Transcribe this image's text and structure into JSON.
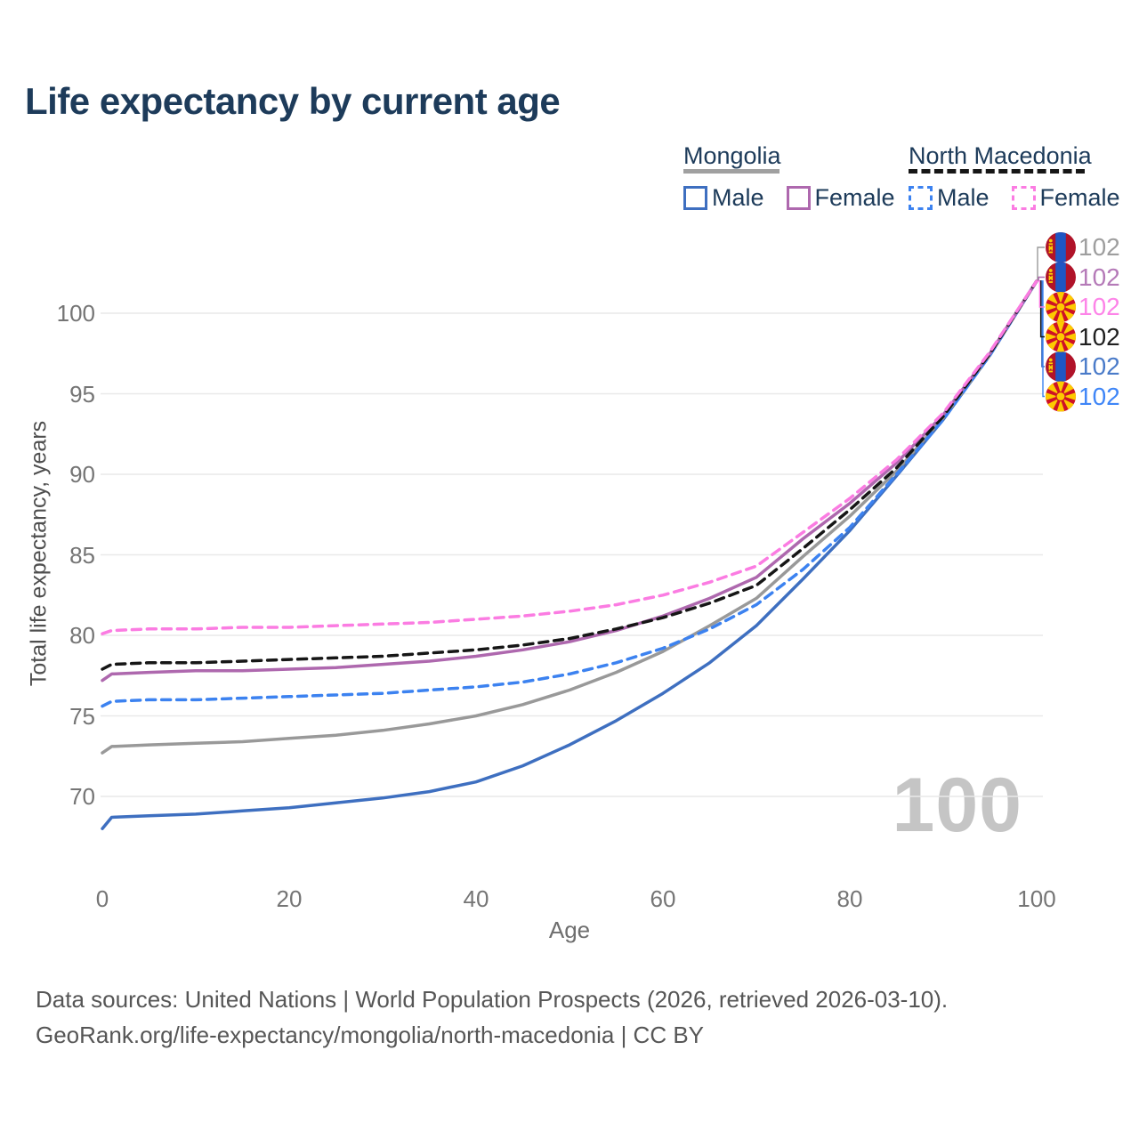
{
  "title": "Life expectancy by current age",
  "watermark": "100",
  "legend": {
    "groups": [
      {
        "country": "Mongolia",
        "line_style": "solid",
        "line_color": "#a0a0a0",
        "items": [
          {
            "label": "Male",
            "color": "#3e6fc0",
            "dashed": false
          },
          {
            "label": "Female",
            "color": "#ae68ae",
            "dashed": false
          }
        ]
      },
      {
        "country": "North Macedonia",
        "line_style": "dashed",
        "line_color": "#161616",
        "items": [
          {
            "label": "Male",
            "color": "#3c82f0",
            "dashed": true
          },
          {
            "label": "Female",
            "color": "#fb7ce2",
            "dashed": true
          }
        ]
      }
    ]
  },
  "chart_data": {
    "type": "line",
    "title": "Life expectancy by current age",
    "xlabel": "Age",
    "ylabel": "Total life expectancy, years",
    "xlim": [
      0,
      100
    ],
    "ylim": [
      67,
      103
    ],
    "x_ticks": [
      0,
      20,
      40,
      60,
      80,
      100
    ],
    "y_ticks": [
      70,
      75,
      80,
      85,
      90,
      95,
      100
    ],
    "grid": "horizontal",
    "legend_position": "top-right",
    "x": [
      0,
      1,
      5,
      10,
      15,
      20,
      25,
      30,
      35,
      40,
      45,
      50,
      55,
      60,
      65,
      70,
      75,
      80,
      85,
      90,
      95,
      100
    ],
    "series": [
      {
        "name": "Mongolia Male",
        "country": "Mongolia",
        "sex": "Male",
        "style": "solid",
        "color": "#3e6fc0",
        "flag": "mn",
        "end_row": 4,
        "end_label": "102",
        "end_label_color": "#4a7bc9",
        "values": [
          68.0,
          68.7,
          68.8,
          68.9,
          69.1,
          69.3,
          69.6,
          69.9,
          70.3,
          70.9,
          71.9,
          73.2,
          74.7,
          76.4,
          78.3,
          80.6,
          83.5,
          86.5,
          89.9,
          93.4,
          97.4,
          102
        ]
      },
      {
        "name": "Mongolia Total",
        "country": "Mongolia",
        "sex": "Total",
        "style": "solid",
        "color": "#999999",
        "flag": "mn",
        "end_row": 0,
        "end_label": "102",
        "end_label_color": "#9e9e9e",
        "values": [
          72.7,
          73.1,
          73.2,
          73.3,
          73.4,
          73.6,
          73.8,
          74.1,
          74.5,
          75.0,
          75.7,
          76.6,
          77.7,
          79.0,
          80.6,
          82.3,
          84.9,
          87.4,
          90.2,
          93.5,
          97.4,
          102
        ]
      },
      {
        "name": "North Macedonia Male",
        "country": "North Macedonia",
        "sex": "Male",
        "style": "dashed",
        "color": "#3c82f0",
        "flag": "mk",
        "end_row": 5,
        "end_label": "102",
        "end_label_color": "#3f86f7",
        "values": [
          75.6,
          75.9,
          76.0,
          76.0,
          76.1,
          76.2,
          76.3,
          76.4,
          76.6,
          76.8,
          77.1,
          77.6,
          78.3,
          79.2,
          80.4,
          81.9,
          84.1,
          86.7,
          90.0,
          93.4,
          97.4,
          102
        ]
      },
      {
        "name": "Mongolia Female",
        "country": "Mongolia",
        "sex": "Female",
        "style": "solid",
        "color": "#ae68ae",
        "flag": "mn",
        "end_row": 1,
        "end_label": "102",
        "end_label_color": "#b57ab8",
        "values": [
          77.2,
          77.6,
          77.7,
          77.8,
          77.8,
          77.9,
          78.0,
          78.2,
          78.4,
          78.7,
          79.1,
          79.6,
          80.3,
          81.2,
          82.3,
          83.6,
          86.0,
          88.2,
          90.7,
          93.7,
          97.5,
          102
        ]
      },
      {
        "name": "North Macedonia Total",
        "country": "North Macedonia",
        "sex": "Total",
        "style": "dashed",
        "color": "#161616",
        "flag": "mk",
        "end_row": 3,
        "end_label": "102",
        "end_label_color": "#1f1f1f",
        "values": [
          77.9,
          78.2,
          78.3,
          78.3,
          78.4,
          78.5,
          78.6,
          78.7,
          78.9,
          79.1,
          79.4,
          79.8,
          80.4,
          81.1,
          82.0,
          83.1,
          85.4,
          87.8,
          90.4,
          93.6,
          97.5,
          102
        ]
      },
      {
        "name": "North Macedonia Female",
        "country": "North Macedonia",
        "sex": "Female",
        "style": "dashed",
        "color": "#fb7ce2",
        "flag": "mk",
        "end_row": 2,
        "end_label": "102",
        "end_label_color": "#fd84e8",
        "values": [
          80.1,
          80.3,
          80.4,
          80.4,
          80.5,
          80.5,
          80.6,
          80.7,
          80.8,
          81.0,
          81.2,
          81.5,
          81.9,
          82.5,
          83.3,
          84.3,
          86.4,
          88.5,
          90.9,
          93.8,
          97.6,
          102
        ]
      }
    ],
    "flag_colors": {
      "mn": {
        "red": "#b01329",
        "blue": "#1f56c3",
        "yellow": "#f9cf02"
      },
      "mk": {
        "red": "#ce1126",
        "yellow": "#fdca00"
      }
    }
  },
  "footer": {
    "line1": "Data sources: United Nations | World Population Prospects (2026, retrieved 2026-03-10).",
    "line2": "GeoRank.org/life-expectancy/mongolia/north-macedonia | CC BY"
  }
}
